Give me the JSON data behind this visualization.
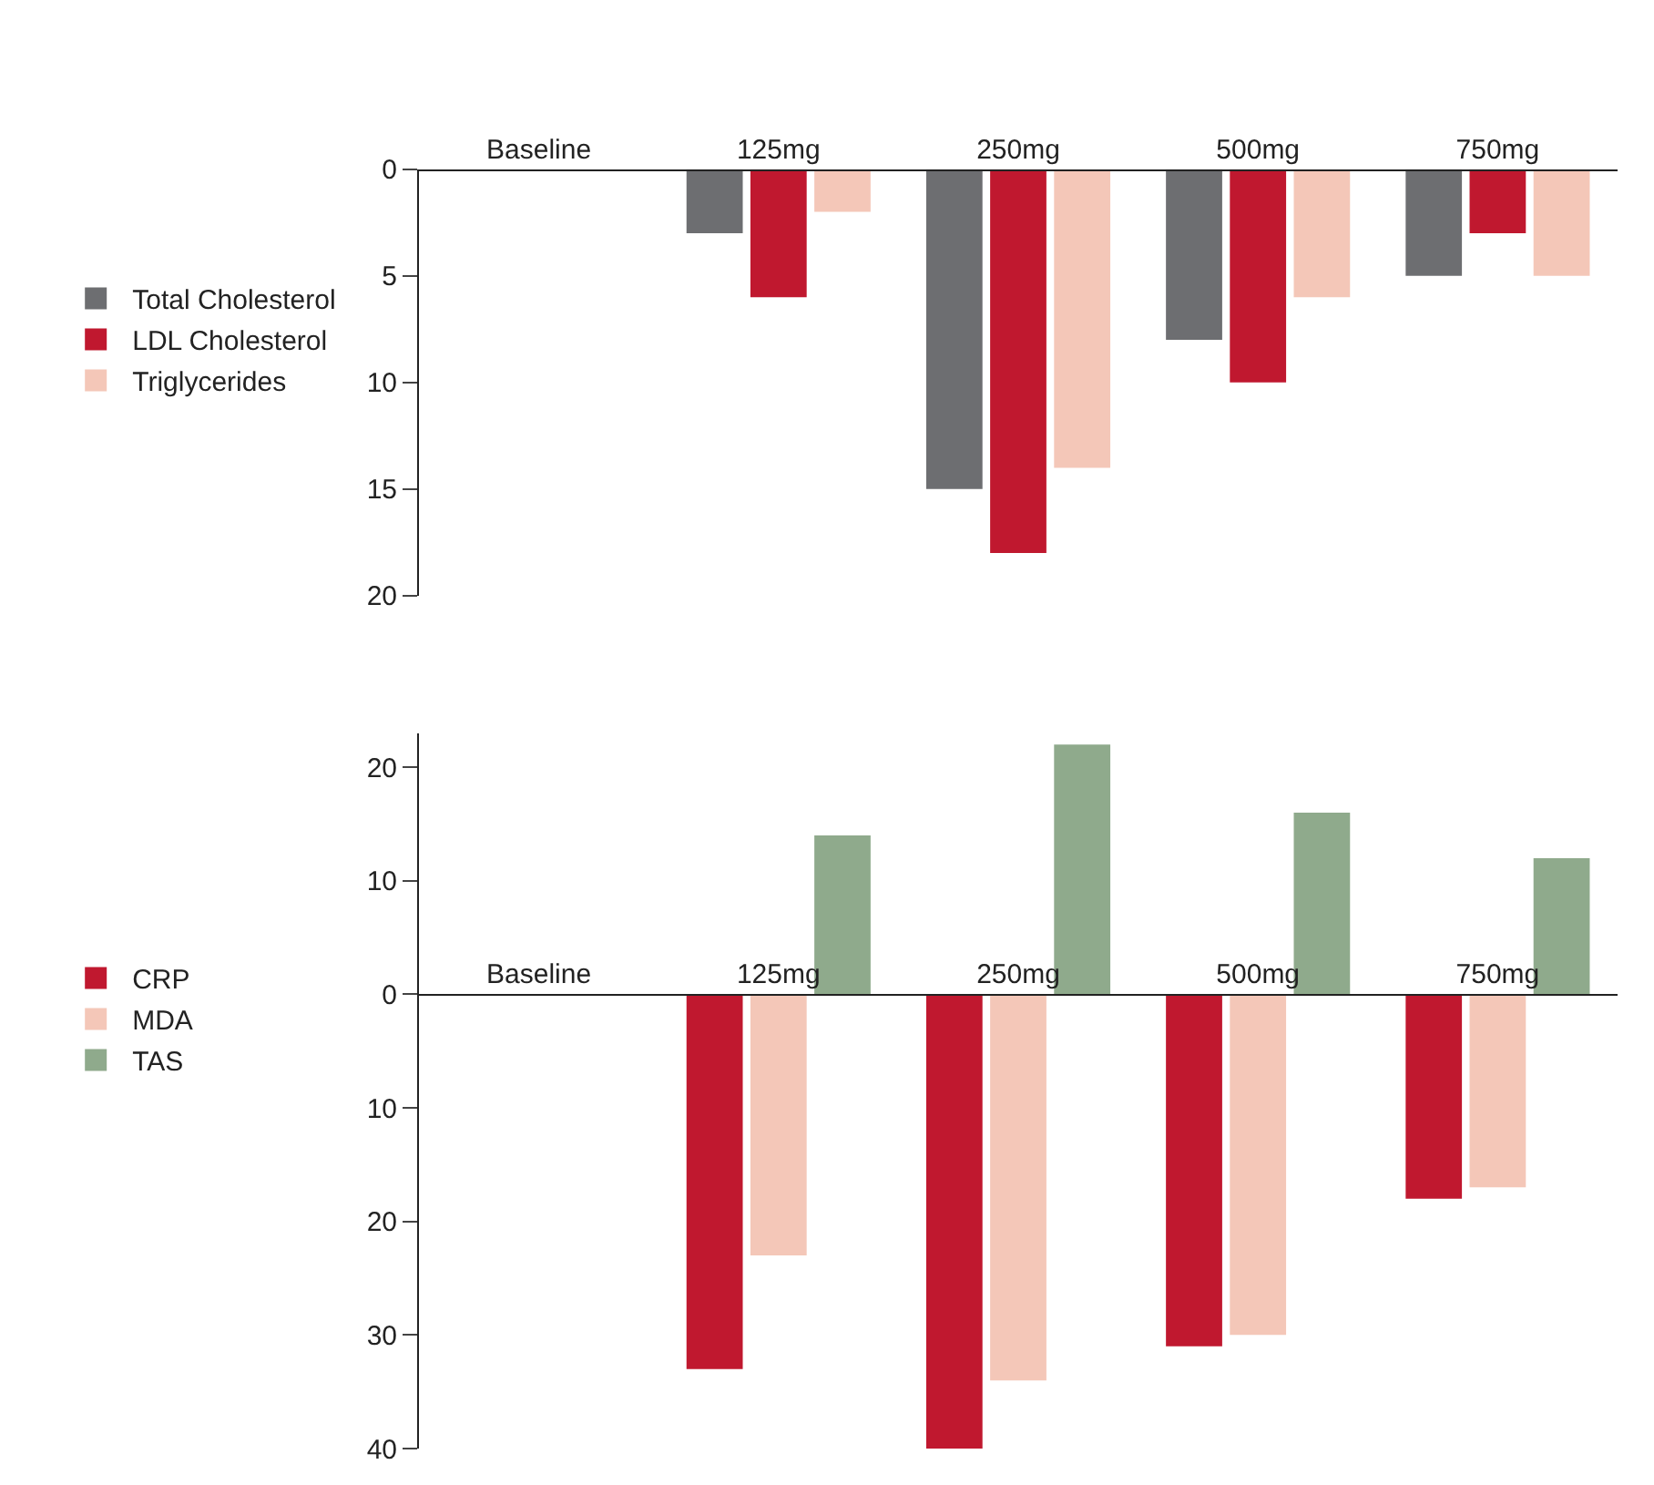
{
  "chart_data": [
    {
      "type": "bar",
      "categories": [
        "Baseline",
        "125mg",
        "250mg",
        "500mg",
        "750mg"
      ],
      "ylim": [
        20,
        0
      ],
      "yticks": [
        0,
        5,
        10,
        15,
        20
      ],
      "legend": "left",
      "series": [
        {
          "name": "Total Cholesterol",
          "color": "#6d6e71",
          "values": [
            0,
            3,
            15,
            8,
            5
          ]
        },
        {
          "name": "LDL Cholesterol",
          "color": "#c0182f",
          "values": [
            0,
            6,
            18,
            10,
            3
          ]
        },
        {
          "name": "Triglycerides",
          "color": "#f4c7b8",
          "values": [
            0,
            2,
            14,
            6,
            5
          ]
        }
      ]
    },
    {
      "type": "bar",
      "categories": [
        "Baseline",
        "125mg",
        "250mg",
        "500mg",
        "750mg"
      ],
      "ylim": [
        -40,
        23
      ],
      "yticks": [
        20,
        10,
        0,
        {
          "value": -10,
          "label": "10"
        },
        {
          "value": -20,
          "label": "20"
        },
        {
          "value": -30,
          "label": "30"
        },
        {
          "value": -40,
          "label": "40"
        }
      ],
      "legend": "left",
      "series": [
        {
          "name": "CRP",
          "color": "#c0182f",
          "values": [
            0,
            -33,
            -40,
            -31,
            -18
          ]
        },
        {
          "name": "MDA",
          "color": "#f4c7b8",
          "values": [
            0,
            -23,
            -34,
            -30,
            -17
          ]
        },
        {
          "name": "TAS",
          "color": "#8faa8c",
          "values": [
            0,
            14,
            22,
            16,
            12
          ]
        }
      ]
    }
  ]
}
